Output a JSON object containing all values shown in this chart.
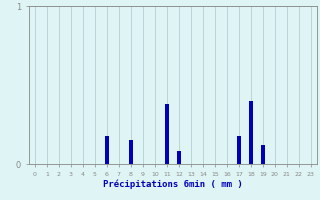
{
  "hours": [
    0,
    1,
    2,
    3,
    4,
    5,
    6,
    7,
    8,
    9,
    10,
    11,
    12,
    13,
    14,
    15,
    16,
    17,
    18,
    19,
    20,
    21,
    22,
    23
  ],
  "values": [
    0,
    0,
    0,
    0,
    0,
    0,
    0.18,
    0,
    0.15,
    0,
    0,
    0.38,
    0.08,
    0,
    0,
    0,
    0,
    0.18,
    0.4,
    0.12,
    0,
    0,
    0,
    0
  ],
  "bar_color": "#0000bb",
  "bg_color": "#dff5f5",
  "grid_color": "#aac8c8",
  "axis_color": "#888888",
  "text_color": "#0000bb",
  "xlabel": "Précipitations 6min ( mm )",
  "ylim": [
    0,
    1.0
  ],
  "ytick_labels": [
    "0",
    "1"
  ],
  "ytick_vals": [
    0,
    1
  ],
  "figsize": [
    3.2,
    2.0
  ],
  "dpi": 100,
  "bar_width": 0.35
}
